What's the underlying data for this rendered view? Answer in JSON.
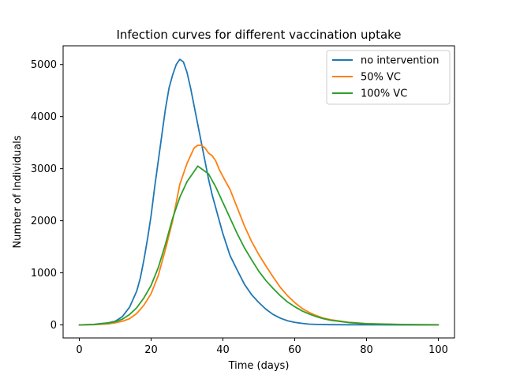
{
  "chart_data": {
    "type": "line",
    "title": "Infection curves for different vaccination uptake",
    "xlabel": "Time (days)",
    "ylabel": "Number of Individuals",
    "xlim": [
      -4.5,
      104.5
    ],
    "ylim": [
      -250,
      5360
    ],
    "xticks": [
      0,
      20,
      40,
      60,
      80,
      100
    ],
    "yticks": [
      0,
      1000,
      2000,
      3000,
      4000,
      5000
    ],
    "grid": false,
    "legend_position": "top-right",
    "series": [
      {
        "name": "no intervention",
        "color": "#1f77b4",
        "x": [
          0,
          4,
          8,
          10,
          12,
          14,
          16,
          17,
          18,
          19,
          20,
          21,
          22,
          23,
          24,
          25,
          26,
          27,
          28,
          29,
          30,
          31,
          32,
          33,
          34,
          35,
          36,
          37,
          38,
          39,
          40,
          42,
          44,
          46,
          48,
          50,
          52,
          54,
          56,
          58,
          60,
          62,
          64,
          66,
          70,
          75,
          80,
          90,
          100
        ],
        "y": [
          0,
          10,
          40,
          70,
          160,
          340,
          650,
          900,
          1250,
          1650,
          2100,
          2650,
          3150,
          3650,
          4150,
          4550,
          4800,
          5000,
          5100,
          5050,
          4850,
          4550,
          4200,
          3850,
          3500,
          3150,
          2800,
          2500,
          2250,
          2000,
          1750,
          1330,
          1050,
          780,
          580,
          430,
          300,
          200,
          130,
          80,
          50,
          30,
          15,
          10,
          5,
          3,
          2,
          1,
          0
        ]
      },
      {
        "name": "50% VC",
        "color": "#ff7f0e",
        "x": [
          0,
          4,
          8,
          10,
          12,
          14,
          16,
          18,
          20,
          22,
          24,
          26,
          27,
          28,
          29,
          30,
          31,
          32,
          33,
          34,
          35,
          36,
          37,
          38,
          39,
          40,
          42,
          44,
          46,
          48,
          50,
          52,
          54,
          56,
          58,
          60,
          62,
          64,
          66,
          68,
          70,
          75,
          80,
          90,
          100
        ],
        "y": [
          0,
          5,
          20,
          40,
          70,
          120,
          220,
          380,
          600,
          950,
          1450,
          2000,
          2350,
          2700,
          2900,
          3100,
          3250,
          3400,
          3450,
          3450,
          3400,
          3300,
          3250,
          3150,
          2980,
          2850,
          2600,
          2250,
          1900,
          1600,
          1350,
          1130,
          920,
          720,
          560,
          430,
          320,
          240,
          180,
          130,
          100,
          50,
          25,
          8,
          3
        ]
      },
      {
        "name": "100% VC",
        "color": "#2ca02c",
        "x": [
          0,
          4,
          8,
          10,
          12,
          14,
          16,
          18,
          20,
          22,
          24,
          26,
          28,
          30,
          32,
          33,
          34,
          36,
          38,
          40,
          42,
          44,
          46,
          48,
          50,
          52,
          54,
          56,
          58,
          60,
          62,
          64,
          66,
          68,
          70,
          75,
          80,
          90,
          100
        ],
        "y": [
          0,
          8,
          35,
          60,
          110,
          200,
          330,
          520,
          760,
          1100,
          1550,
          2050,
          2450,
          2750,
          2950,
          3050,
          3000,
          2900,
          2650,
          2350,
          2050,
          1750,
          1480,
          1250,
          1030,
          850,
          700,
          560,
          440,
          350,
          270,
          210,
          160,
          120,
          90,
          45,
          22,
          7,
          2
        ]
      }
    ]
  }
}
